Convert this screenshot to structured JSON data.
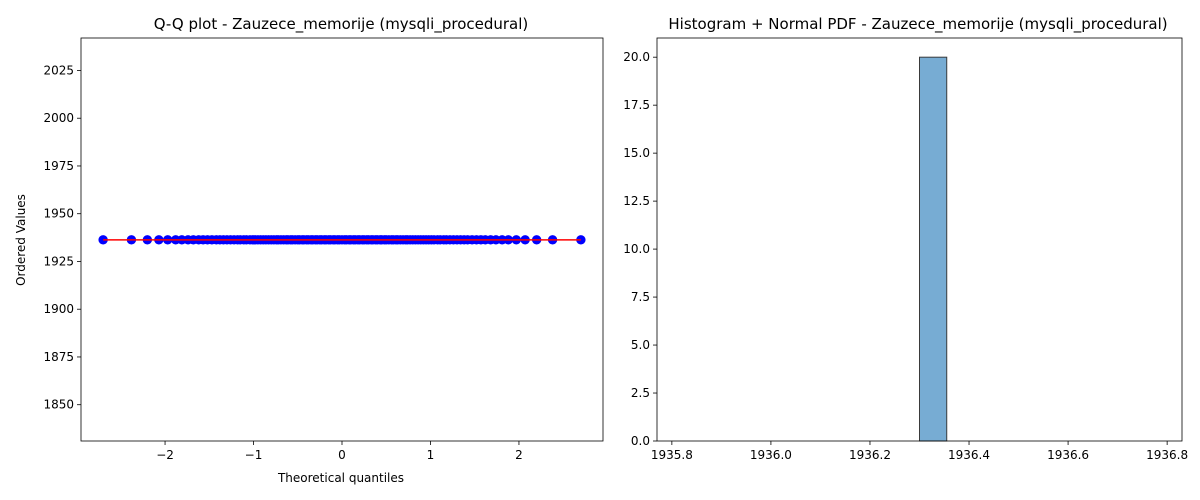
{
  "chart_data": [
    {
      "type": "scatter",
      "title": "Q-Q plot - Zauzece_memorije (mysqli_procedural)",
      "xlabel": "Theoretical quantiles",
      "ylabel": "Ordered Values",
      "xlim": [
        -2.95,
        2.95
      ],
      "ylim": [
        1831,
        2042
      ],
      "xticks": [
        -2,
        -1,
        0,
        1,
        2
      ],
      "xtick_labels": [
        "−2",
        "−1",
        "0",
        "1",
        "2"
      ],
      "yticks": [
        1850,
        1875,
        1900,
        1925,
        1950,
        1975,
        2000,
        2025
      ],
      "ytick_labels": [
        "1850",
        "1875",
        "1900",
        "1925",
        "1950",
        "1975",
        "2000",
        "2025"
      ],
      "grid": false,
      "marker_color": "#0000ff",
      "series": [
        {
          "x": [
            -2.7,
            -2.38,
            -2.2,
            -2.07,
            -1.97,
            -1.88,
            -1.81,
            -1.74,
            -1.68,
            -1.62,
            -1.57,
            -1.52,
            -1.47,
            -1.42,
            -1.38,
            -1.34,
            -1.3,
            -1.26,
            -1.22,
            -1.18,
            -1.15,
            -1.11,
            -1.08,
            -1.04,
            -1.01,
            -0.98,
            -0.95,
            -0.92,
            -0.89,
            -0.86,
            -0.83,
            -0.8,
            -0.77,
            -0.74,
            -0.72,
            -0.69,
            -0.66,
            -0.63,
            -0.61,
            -0.58,
            -0.56,
            -0.53,
            -0.5,
            -0.48,
            -0.45,
            -0.43,
            -0.4,
            -0.38,
            -0.35,
            -0.33,
            -0.3,
            -0.28,
            -0.25,
            -0.23,
            -0.2,
            -0.18,
            -0.15,
            -0.13,
            -0.1,
            -0.08,
            -0.05,
            -0.03,
            0.0,
            0.03,
            0.05,
            0.08,
            0.1,
            0.13,
            0.15,
            0.18,
            0.2,
            0.23,
            0.25,
            0.28,
            0.3,
            0.33,
            0.35,
            0.38,
            0.4,
            0.43,
            0.45,
            0.48,
            0.5,
            0.53,
            0.56,
            0.58,
            0.61,
            0.63,
            0.66,
            0.69,
            0.72,
            0.74,
            0.77,
            0.8,
            0.83,
            0.86,
            0.89,
            0.92,
            0.95,
            0.98,
            1.01,
            1.04,
            1.08,
            1.11,
            1.15,
            1.18,
            1.22,
            1.26,
            1.3,
            1.34,
            1.38,
            1.42,
            1.47,
            1.52,
            1.57,
            1.62,
            1.68,
            1.74,
            1.81,
            1.88,
            1.97,
            2.07,
            2.2,
            2.38,
            2.7
          ],
          "y": 1936.33
        }
      ],
      "fit_line": {
        "x": [
          -2.7,
          2.7
        ],
        "y": [
          1936.33,
          1936.33
        ],
        "color": "#ff0000"
      }
    },
    {
      "type": "bar",
      "title": "Histogram + Normal PDF - Zauzece_memorije (mysqli_procedural)",
      "xlim": [
        1935.77,
        1936.83
      ],
      "ylim": [
        0,
        21
      ],
      "xticks": [
        1935.8,
        1936.0,
        1936.2,
        1936.4,
        1936.6,
        1936.8
      ],
      "xtick_labels": [
        "1935.8",
        "1936.0",
        "1936.2",
        "1936.4",
        "1936.6",
        "1936.8"
      ],
      "yticks": [
        0,
        2.5,
        5,
        7.5,
        10,
        12.5,
        15,
        17.5,
        20
      ],
      "ytick_labels": [
        "0.0",
        "2.5",
        "5.0",
        "7.5",
        "10.0",
        "12.5",
        "15.0",
        "17.5",
        "20.0"
      ],
      "grid": false,
      "bar_color": "#77acd3",
      "bins": [
        {
          "x0": 1936.3,
          "x1": 1936.355,
          "count": 20
        }
      ]
    }
  ]
}
